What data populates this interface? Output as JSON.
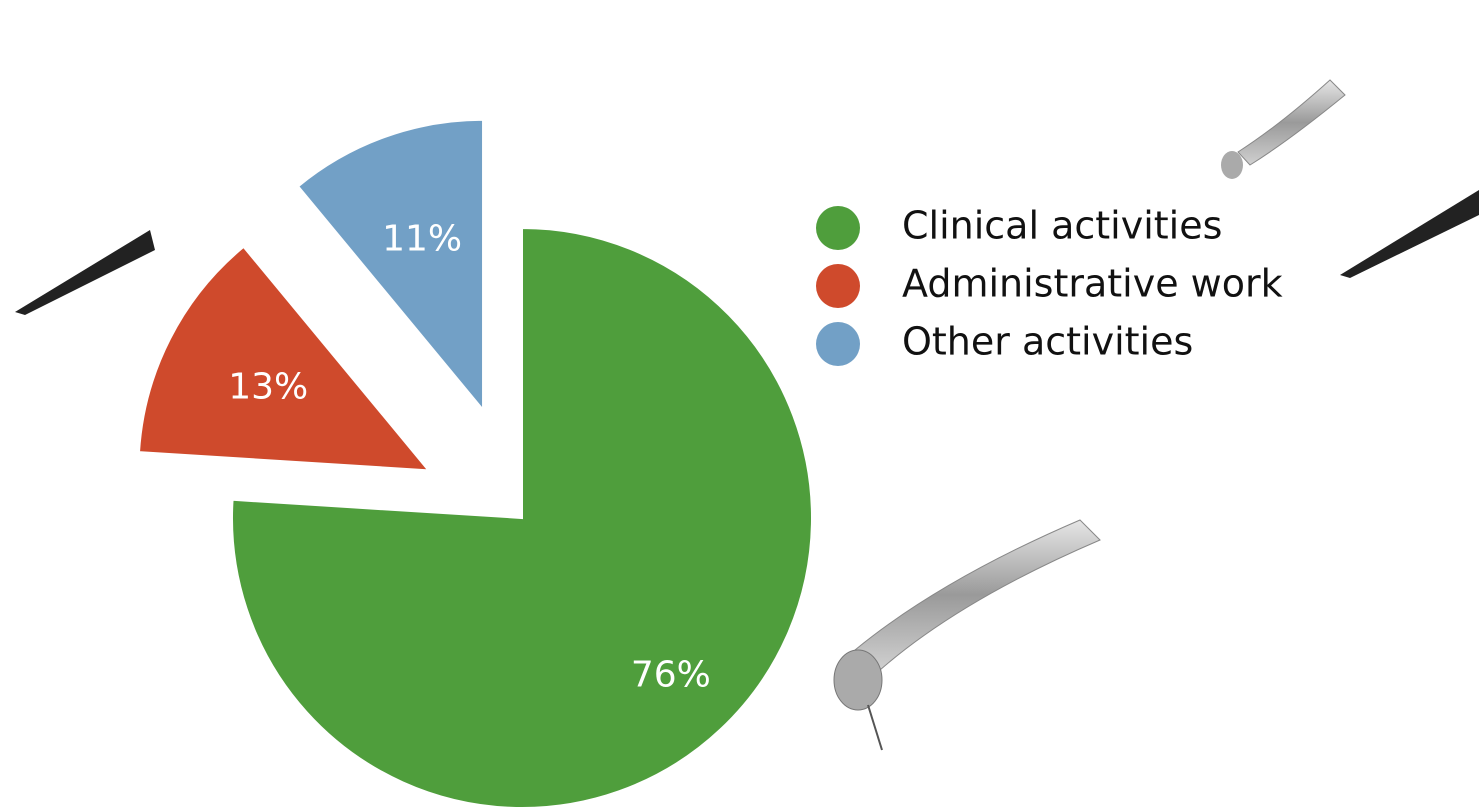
{
  "chart_data": {
    "type": "pie",
    "categories": [
      "Clinical activities",
      "Administrative work",
      "Other activities"
    ],
    "values": [
      76,
      13,
      11
    ],
    "value_labels": [
      "76%",
      "13%",
      "11%"
    ],
    "colors": [
      "#4f9e3c",
      "#cf4a2c",
      "#72a0c6"
    ],
    "legend": "right"
  }
}
